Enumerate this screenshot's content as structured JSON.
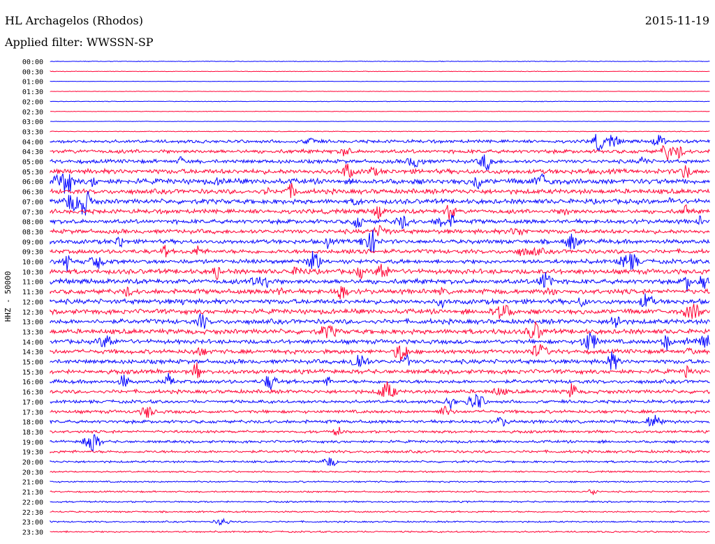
{
  "header": {
    "station": "HL Archagelos (Rhodos)",
    "date": "2015-11-19",
    "filter": "Applied filter: WWSSN-SP"
  },
  "chart_data": {
    "type": "line",
    "title": "HL Archagelos (Rhodos)",
    "ylabel": "HHZ - 50000",
    "colors": [
      "#0000ff",
      "#ff0033"
    ],
    "rows": [
      "00:00",
      "00:30",
      "01:00",
      "01:30",
      "02:00",
      "02:30",
      "03:00",
      "03:30",
      "04:00",
      "04:30",
      "05:00",
      "05:30",
      "06:00",
      "06:30",
      "07:00",
      "07:30",
      "08:00",
      "08:30",
      "09:00",
      "09:30",
      "10:00",
      "10:30",
      "11:00",
      "11:30",
      "12:00",
      "12:30",
      "13:00",
      "13:30",
      "14:00",
      "14:30",
      "15:00",
      "15:30",
      "16:00",
      "16:30",
      "17:00",
      "17:30",
      "18:00",
      "18:30",
      "19:00",
      "19:30",
      "20:00",
      "20:30",
      "21:00",
      "21:30",
      "22:00",
      "22:30",
      "23:00",
      "23:30"
    ],
    "noise_level": [
      0.12,
      0.1,
      0.08,
      0.08,
      0.12,
      0.1,
      0.08,
      0.15,
      0.6,
      0.7,
      0.7,
      0.9,
      1.0,
      0.9,
      0.9,
      0.8,
      0.8,
      0.8,
      0.8,
      0.8,
      0.8,
      0.9,
      0.9,
      0.9,
      0.9,
      0.9,
      0.9,
      0.9,
      0.8,
      0.8,
      0.8,
      0.8,
      0.7,
      0.7,
      0.6,
      0.6,
      0.6,
      0.5,
      0.5,
      0.5,
      0.4,
      0.3,
      0.3,
      0.3,
      0.3,
      0.3,
      0.3,
      0.3
    ]
  }
}
